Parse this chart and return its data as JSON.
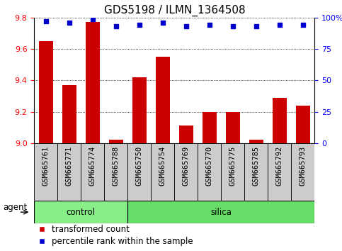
{
  "title": "GDS5198 / ILMN_1364508",
  "samples": [
    "GSM665761",
    "GSM665771",
    "GSM665774",
    "GSM665788",
    "GSM665750",
    "GSM665754",
    "GSM665769",
    "GSM665770",
    "GSM665775",
    "GSM665785",
    "GSM665792",
    "GSM665793"
  ],
  "red_values": [
    9.65,
    9.37,
    9.77,
    9.02,
    9.42,
    9.55,
    9.11,
    9.2,
    9.2,
    9.02,
    9.29,
    9.24
  ],
  "blue_values": [
    97,
    96,
    99,
    93,
    94,
    96,
    93,
    94,
    93,
    93,
    94,
    94
  ],
  "ylim_left": [
    9.0,
    9.8
  ],
  "ylim_right": [
    0,
    100
  ],
  "yticks_left": [
    9.0,
    9.2,
    9.4,
    9.6,
    9.8
  ],
  "yticks_right": [
    0,
    25,
    50,
    75,
    100
  ],
  "ytick_labels_right": [
    "0",
    "25",
    "50",
    "75",
    "100%"
  ],
  "control_count": 4,
  "silica_count": 8,
  "bar_color": "#cc0000",
  "dot_color": "#0000cc",
  "control_color": "#88ee88",
  "silica_color": "#66dd66",
  "agent_label": "agent",
  "control_label": "control",
  "silica_label": "silica",
  "legend_red": "transformed count",
  "legend_blue": "percentile rank within the sample",
  "bg_color": "#cccccc",
  "plot_bg": "#ffffff",
  "title_fontsize": 11,
  "tick_fontsize": 8,
  "label_fontsize": 8.5,
  "sample_fontsize": 7.5
}
